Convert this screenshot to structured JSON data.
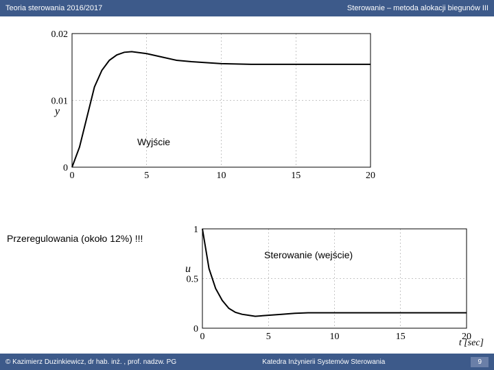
{
  "header": {
    "left": "Teoria sterowania  2016/2017",
    "right": "Sterowanie – metoda alokacji biegunów III"
  },
  "footer": {
    "left": "©  Kazimierz Duzinkiewicz, dr hab. inż. , prof. nadzw. PG",
    "center": "Katedra Inżynierii Systemów Sterowania",
    "page": "9"
  },
  "annotations": {
    "wyjscie": "Wyjście",
    "przeregulowania": "Przeregulowania (około 12%) !!!",
    "sterowanie": "Sterowanie (wejście)"
  },
  "chart1": {
    "type": "line",
    "ylabel": "y",
    "ylim": [
      0,
      0.02
    ],
    "yticks": [
      0,
      0.01,
      0.02
    ],
    "xlim": [
      0,
      20
    ],
    "xticks": [
      0,
      5,
      10,
      15,
      20
    ],
    "line_color": "#000000",
    "line_width": 2,
    "grid_color": "#888888",
    "background_color": "#ffffff",
    "axis_fontsize": 14,
    "data_x": [
      0,
      0.5,
      1,
      1.5,
      2,
      2.5,
      3,
      3.5,
      4,
      5,
      6,
      7,
      8,
      10,
      12,
      15,
      20
    ],
    "data_y": [
      0,
      0.003,
      0.0075,
      0.012,
      0.0145,
      0.016,
      0.0168,
      0.0172,
      0.0173,
      0.017,
      0.0165,
      0.016,
      0.0158,
      0.0155,
      0.0154,
      0.0154,
      0.0154
    ]
  },
  "chart2": {
    "type": "line",
    "ylabel": "u",
    "xlabel": "t [sec]",
    "ylim": [
      0,
      1
    ],
    "yticks": [
      0,
      0.5,
      1
    ],
    "xlim": [
      0,
      20
    ],
    "xticks": [
      0,
      5,
      10,
      15,
      20
    ],
    "line_color": "#000000",
    "line_width": 2,
    "grid_color": "#888888",
    "background_color": "#ffffff",
    "axis_fontsize": 14,
    "data_x": [
      0,
      0.5,
      1,
      1.5,
      2,
      2.5,
      3,
      3.5,
      4,
      5,
      6,
      7,
      8,
      10,
      12,
      15,
      20
    ],
    "data_y": [
      1,
      0.6,
      0.4,
      0.28,
      0.2,
      0.16,
      0.14,
      0.13,
      0.12,
      0.13,
      0.14,
      0.15,
      0.155,
      0.155,
      0.155,
      0.155,
      0.155
    ]
  }
}
